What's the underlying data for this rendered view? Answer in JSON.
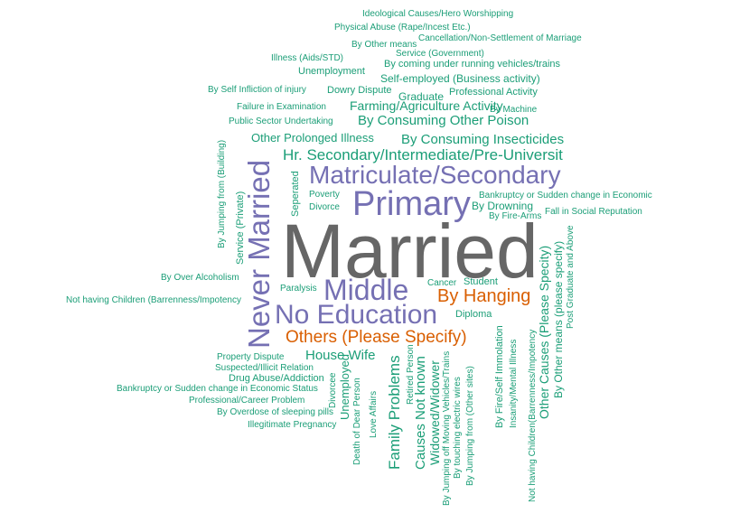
{
  "colors": {
    "teal": "#1b9e77",
    "purple": "#7570b3",
    "orange": "#d95f02",
    "gray": "#666666"
  },
  "words": [
    {
      "text": "Married",
      "color": "gray"
    },
    {
      "text": "Primary",
      "color": "purple"
    },
    {
      "text": "Matriculate/Secondary",
      "color": "purple"
    },
    {
      "text": "No Education",
      "color": "purple"
    },
    {
      "text": "Middle",
      "color": "purple"
    },
    {
      "text": "Never Married",
      "color": "purple"
    },
    {
      "text": "By Hanging",
      "color": "orange"
    },
    {
      "text": "Others (Please Specify)",
      "color": "orange"
    },
    {
      "text": "Ideological Causes/Hero Worshipping",
      "color": "teal"
    },
    {
      "text": "Physical Abuse (Rape/Incest Etc.)",
      "color": "teal"
    },
    {
      "text": "Cancellation/Non-Settlement of Marriage",
      "color": "teal"
    },
    {
      "text": "By Other means",
      "color": "teal"
    },
    {
      "text": "Service (Government)",
      "color": "teal"
    },
    {
      "text": "Illness (Aids/STD)",
      "color": "teal"
    },
    {
      "text": "By coming under running vehicles/trains",
      "color": "teal"
    },
    {
      "text": "Unemployment",
      "color": "teal"
    },
    {
      "text": "Self-employed (Business activity)",
      "color": "teal"
    },
    {
      "text": "By Self Infliction of injury",
      "color": "teal"
    },
    {
      "text": "Dowry Dispute",
      "color": "teal"
    },
    {
      "text": "Graduate",
      "color": "teal"
    },
    {
      "text": "Professional Activity",
      "color": "teal"
    },
    {
      "text": "Failure in Examination",
      "color": "teal"
    },
    {
      "text": "Farming/Agriculture Activity",
      "color": "teal"
    },
    {
      "text": "By Machine",
      "color": "teal"
    },
    {
      "text": "Public Sector Undertaking",
      "color": "teal"
    },
    {
      "text": "By Consuming Other Poison",
      "color": "teal"
    },
    {
      "text": "Other Prolonged Illness",
      "color": "teal"
    },
    {
      "text": "By Consuming Insecticides",
      "color": "teal"
    },
    {
      "text": "Hr. Secondary/Intermediate/Pre-Universit",
      "color": "teal"
    },
    {
      "text": "Poverty",
      "color": "teal"
    },
    {
      "text": "Divorce",
      "color": "teal"
    },
    {
      "text": "Bankruptcy or Sudden change in Economic",
      "color": "teal"
    },
    {
      "text": "By Drowning",
      "color": "teal"
    },
    {
      "text": "Fall in Social Reputation",
      "color": "teal"
    },
    {
      "text": "By Fire-Arms",
      "color": "teal"
    },
    {
      "text": "By Over Alcoholism",
      "color": "teal"
    },
    {
      "text": "Paralysis",
      "color": "teal"
    },
    {
      "text": "Cancer",
      "color": "teal"
    },
    {
      "text": "Student",
      "color": "teal"
    },
    {
      "text": "Not having Children (Barrenness/Impotency",
      "color": "teal"
    },
    {
      "text": "Diploma",
      "color": "teal"
    },
    {
      "text": "Property Dispute",
      "color": "teal"
    },
    {
      "text": "House Wife",
      "color": "teal"
    },
    {
      "text": "Suspected/Illicit Relation",
      "color": "teal"
    },
    {
      "text": "Drug Abuse/Addiction",
      "color": "teal"
    },
    {
      "text": "Bankruptcy or Sudden change in Economic Status",
      "color": "teal"
    },
    {
      "text": "Professional/Career Problem",
      "color": "teal"
    },
    {
      "text": "By Overdose of sleeping pills",
      "color": "teal"
    },
    {
      "text": "Illegitimate Pregnancy",
      "color": "teal"
    },
    {
      "text": "By Jumping from (Building)",
      "color": "teal"
    },
    {
      "text": "Service (Private)",
      "color": "teal"
    },
    {
      "text": "Seperated",
      "color": "teal"
    },
    {
      "text": "Death of Dear Person",
      "color": "teal"
    },
    {
      "text": "Unemployed",
      "color": "teal"
    },
    {
      "text": "Divorcee",
      "color": "teal"
    },
    {
      "text": "Love Affairs",
      "color": "teal"
    },
    {
      "text": "Family Problems",
      "color": "teal"
    },
    {
      "text": "Retired Person",
      "color": "teal"
    },
    {
      "text": "Causes Not known",
      "color": "teal"
    },
    {
      "text": "Widowed/Widower",
      "color": "teal"
    },
    {
      "text": "By Jumping off Moving Vehicles/Trains",
      "color": "teal"
    },
    {
      "text": "By touching electric wires",
      "color": "teal"
    },
    {
      "text": "By Jumping from (Other sites)",
      "color": "teal"
    },
    {
      "text": "By Fire/Self Immolation",
      "color": "teal"
    },
    {
      "text": "Insanity/Mental Illness",
      "color": "teal"
    },
    {
      "text": "Not having Children(Barrenness/Impotency",
      "color": "teal"
    },
    {
      "text": "Other Causes (Please Specity)",
      "color": "teal"
    },
    {
      "text": "By Other means (please specify)",
      "color": "teal"
    },
    {
      "text": "Post Graduate and Above",
      "color": "teal"
    }
  ]
}
